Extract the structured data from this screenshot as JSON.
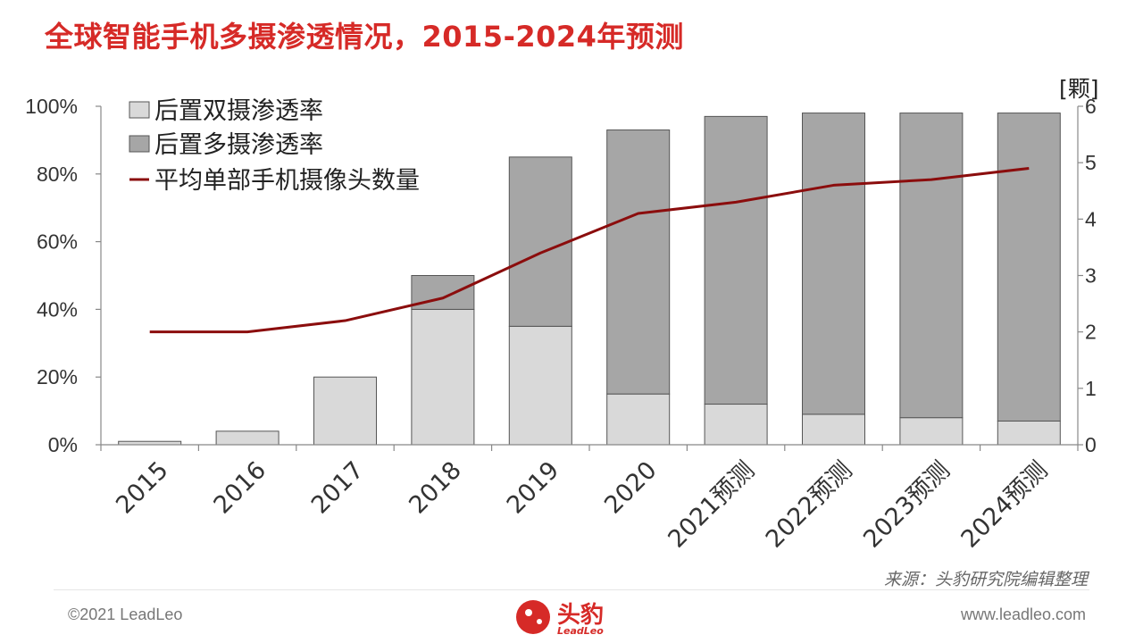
{
  "title": "全球智能手机多摄渗透情况，2015-2024年预测",
  "source_note": "来源：头豹研究院编辑整理",
  "footer": {
    "copyright": "©2021 LeadLeo",
    "website": "www.leadleo.com",
    "logo_text": "头豹",
    "logo_sub": "LeadLeo"
  },
  "colors": {
    "title": "#d62a27",
    "dual_bar": "#d9d9d9",
    "multi_bar": "#a6a6a6",
    "line": "#8b0d0d"
  },
  "chart_data": {
    "type": "bar",
    "stacked": true,
    "categories": [
      "2015",
      "2016",
      "2017",
      "2018",
      "2019",
      "2020",
      "2021预测",
      "2022预测",
      "2023预测",
      "2024预测"
    ],
    "series": [
      {
        "name": "后置双摄渗透率",
        "kind": "bar",
        "axis": "left",
        "values": [
          1,
          4,
          20,
          40,
          35,
          15,
          12,
          9,
          8,
          7
        ]
      },
      {
        "name": "后置多摄渗透率",
        "kind": "bar",
        "axis": "left",
        "values": [
          0,
          0,
          0,
          10,
          50,
          78,
          85,
          89,
          90,
          91
        ]
      },
      {
        "name": "平均单部手机摄像头数量",
        "kind": "line",
        "axis": "right",
        "values": [
          2.0,
          2.0,
          2.2,
          2.6,
          3.4,
          4.1,
          4.3,
          4.6,
          4.7,
          4.9
        ]
      }
    ],
    "y_left": {
      "min": 0,
      "max": 100,
      "ticks": [
        "0%",
        "20%",
        "40%",
        "60%",
        "80%",
        "100%"
      ]
    },
    "y_right": {
      "min": 0,
      "max": 6,
      "ticks": [
        "0",
        "1",
        "2",
        "3",
        "4",
        "5",
        "6"
      ],
      "label": "[颗]"
    },
    "legend_position": "top-left",
    "grid": false
  }
}
